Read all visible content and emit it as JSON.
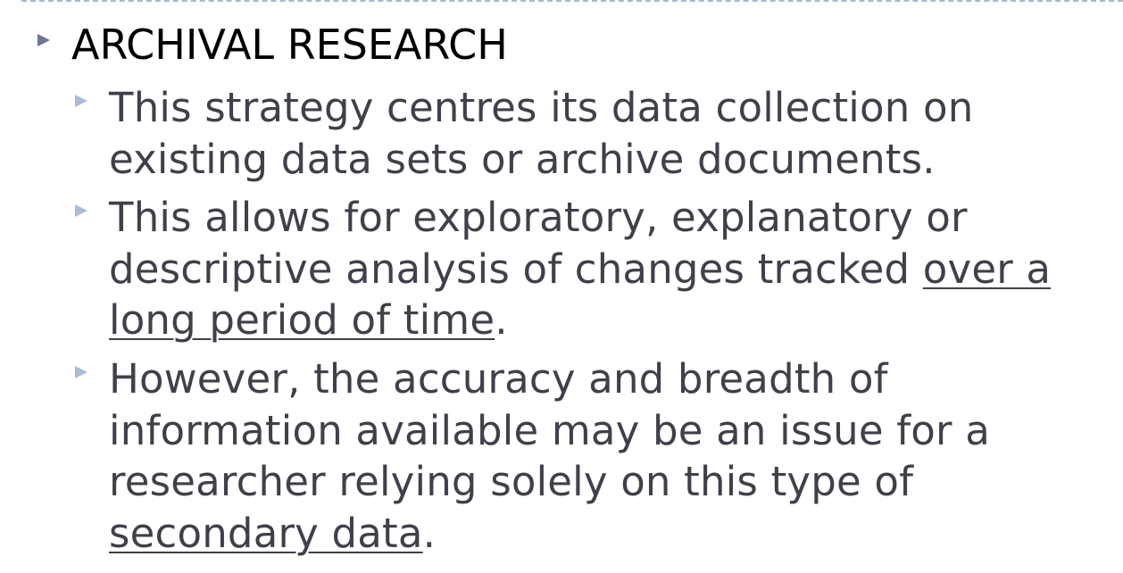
{
  "slide": {
    "heading": "ARCHIVAL RESEARCH",
    "points": [
      {
        "before": "This strategy centres its data collection on existing data sets or archive documents.",
        "link": "",
        "after": ""
      },
      {
        "before": "This allows for exploratory, explanatory or descriptive analysis of changes tracked ",
        "link": "over a long period of time",
        "after": "."
      },
      {
        "before": "However, the accuracy and breadth of information available may be an issue for a researcher relying solely on this type of ",
        "link": "secondary data",
        "after": "."
      }
    ]
  },
  "colors": {
    "heading_text": "#000000",
    "body_text": "#40404a",
    "level1_bullet": "#6b7596",
    "level2_bullet": "#a8bdd6",
    "top_rule": "#a9b9cc"
  }
}
